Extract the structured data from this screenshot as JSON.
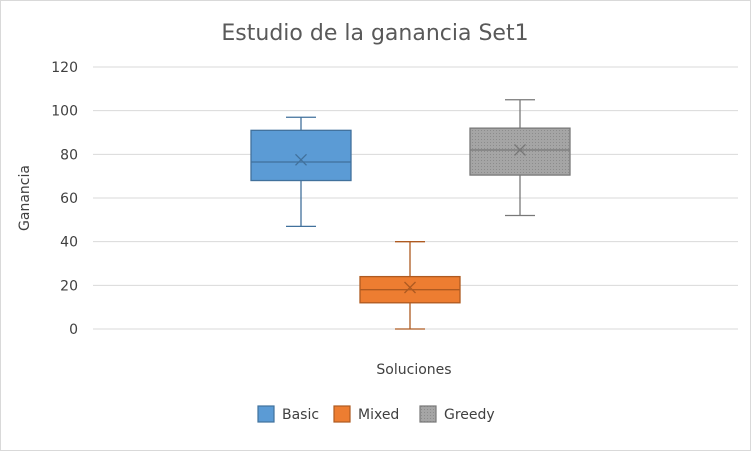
{
  "chart_data": {
    "type": "boxplot",
    "title": "Estudio de la ganancia Set1",
    "xlabel": "Soluciones",
    "ylabel": "Ganancia",
    "ylim": [
      0,
      120
    ],
    "yticks": [
      0,
      20,
      40,
      60,
      80,
      100,
      120
    ],
    "grid": true,
    "legend_position": "bottom",
    "series": [
      {
        "name": "Basic",
        "min": 47,
        "q1": 68,
        "median": 76.5,
        "q3": 91,
        "max": 97,
        "mean": 77.5,
        "color": "#5b9bd5",
        "edge": "#41719c"
      },
      {
        "name": "Mixed",
        "min": 0,
        "q1": 12,
        "median": 18,
        "q3": 24,
        "max": 40,
        "mean": 19,
        "color": "#ed7d31",
        "edge": "#ae5a21"
      },
      {
        "name": "Greedy",
        "min": 52,
        "q1": 70.5,
        "median": 82,
        "q3": 92,
        "max": 105,
        "mean": 82,
        "color": "#a5a5a5",
        "edge": "#787878"
      }
    ]
  }
}
